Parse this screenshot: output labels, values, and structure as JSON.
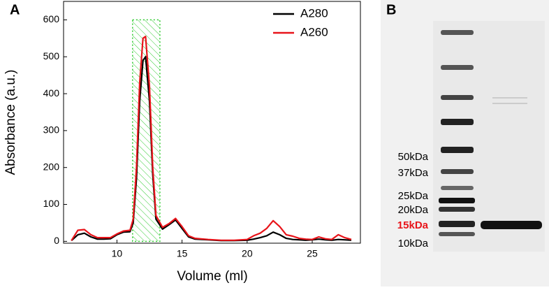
{
  "chart_data": {
    "type": "line",
    "panel_label": "A",
    "x_label": "Volume (ml)",
    "y_label": "Absorbance (a.u.)",
    "x": [
      6.5,
      7,
      7.5,
      8,
      8.5,
      9,
      9.5,
      10,
      10.5,
      11,
      11.25,
      11.5,
      11.75,
      12,
      12.2,
      12.5,
      12.75,
      13,
      13.5,
      14,
      14.5,
      15,
      15.5,
      16,
      17,
      18,
      19,
      20,
      20.5,
      21,
      21.5,
      22,
      22.5,
      23,
      23.5,
      24,
      24.5,
      25,
      25.5,
      26,
      26.5,
      27,
      27.5,
      28
    ],
    "series": [
      {
        "name": "A280",
        "color": "#000000",
        "values": [
          2,
          18,
          22,
          12,
          6,
          6,
          7,
          18,
          25,
          26,
          50,
          170,
          380,
          490,
          500,
          380,
          180,
          60,
          33,
          45,
          58,
          35,
          12,
          6,
          4,
          2,
          2,
          3,
          6,
          10,
          15,
          25,
          18,
          8,
          5,
          4,
          3,
          4,
          6,
          4,
          3,
          5,
          4,
          3
        ]
      },
      {
        "name": "A260",
        "color": "#e8141a",
        "values": [
          2,
          30,
          32,
          18,
          10,
          10,
          10,
          20,
          28,
          30,
          60,
          200,
          430,
          550,
          555,
          420,
          200,
          70,
          38,
          48,
          62,
          40,
          15,
          8,
          5,
          3,
          3,
          5,
          15,
          22,
          35,
          56,
          40,
          18,
          14,
          8,
          6,
          5,
          12,
          7,
          5,
          18,
          10,
          5
        ]
      }
    ],
    "shaded_region": {
      "x": [
        11.2,
        13.3
      ],
      "top": 600,
      "color": "#33cc33"
    },
    "xlim": [
      5.9,
      28.7
    ],
    "xticks": [
      10,
      15,
      20,
      25
    ],
    "ylim": [
      -5,
      650
    ],
    "yticks": [
      0,
      100,
      200,
      300,
      400,
      500,
      600
    ],
    "legend": "upper right"
  },
  "gel": {
    "panel_label": "B",
    "markers": [
      {
        "label": "50kDa",
        "color": "#000000",
        "bold": false
      },
      {
        "label": "37kDa",
        "color": "#000000",
        "bold": false
      },
      {
        "label": "25kDa",
        "color": "#000000",
        "bold": false
      },
      {
        "label": "20kDa",
        "color": "#000000",
        "bold": false
      },
      {
        "label": "15kDa",
        "color": "#e8141a",
        "bold": true
      },
      {
        "label": "10kDa",
        "color": "#000000",
        "bold": false
      }
    ]
  }
}
